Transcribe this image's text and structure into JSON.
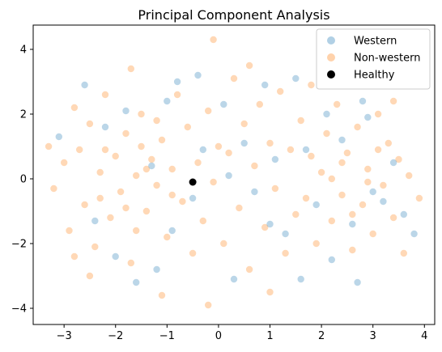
{
  "chart_data": {
    "type": "scatter",
    "title": "Principal Component Analysis",
    "xlabel": "",
    "ylabel": "",
    "xlim": [
      -3.6,
      4.2
    ],
    "ylim": [
      -4.5,
      4.75
    ],
    "xticks": [
      -3,
      -2,
      -1,
      0,
      1,
      2,
      3,
      4
    ],
    "yticks": [
      -4,
      -2,
      0,
      2,
      4
    ],
    "grid": false,
    "legend_position": "top-right",
    "series": [
      {
        "name": "Western",
        "color": "#1f77b4",
        "alpha": 0.3,
        "marker": "circle",
        "points": [
          [
            -3.1,
            1.3
          ],
          [
            -2.6,
            2.9
          ],
          [
            -2.2,
            1.6
          ],
          [
            -1.8,
            2.1
          ],
          [
            -1.6,
            -3.2
          ],
          [
            -1.2,
            -2.8
          ],
          [
            -1.0,
            2.4
          ],
          [
            -0.8,
            3.0
          ],
          [
            -0.4,
            3.2
          ],
          [
            -0.3,
            0.9
          ],
          [
            0.1,
            2.3
          ],
          [
            0.3,
            -3.1
          ],
          [
            0.5,
            1.1
          ],
          [
            0.7,
            -0.4
          ],
          [
            0.9,
            2.9
          ],
          [
            1.1,
            0.6
          ],
          [
            1.3,
            -1.7
          ],
          [
            1.5,
            3.1
          ],
          [
            1.6,
            -3.1
          ],
          [
            1.7,
            0.9
          ],
          [
            1.9,
            -0.8
          ],
          [
            2.1,
            2.0
          ],
          [
            2.2,
            -2.5
          ],
          [
            2.4,
            1.2
          ],
          [
            2.6,
            -1.4
          ],
          [
            2.7,
            -3.2
          ],
          [
            2.9,
            1.9
          ],
          [
            3.0,
            -0.4
          ],
          [
            3.2,
            -0.7
          ],
          [
            3.4,
            0.5
          ],
          [
            3.6,
            -1.1
          ],
          [
            3.8,
            -1.7
          ],
          [
            1.0,
            -1.4
          ],
          [
            0.2,
            0.1
          ],
          [
            -0.5,
            -0.6
          ],
          [
            -1.3,
            0.4
          ],
          [
            -2.4,
            -1.3
          ],
          [
            -2.0,
            -2.4
          ],
          [
            -0.9,
            -1.6
          ],
          [
            2.8,
            2.4
          ]
        ]
      },
      {
        "name": "Non-western",
        "color": "#ff7f0e",
        "alpha": 0.3,
        "marker": "circle",
        "points": [
          [
            -3.3,
            1.0
          ],
          [
            -3.2,
            -0.3
          ],
          [
            -3.0,
            0.5
          ],
          [
            -2.9,
            -1.6
          ],
          [
            -2.8,
            2.2
          ],
          [
            -2.7,
            0.9
          ],
          [
            -2.6,
            -0.8
          ],
          [
            -2.5,
            1.7
          ],
          [
            -2.4,
            -2.1
          ],
          [
            -2.3,
            0.2
          ],
          [
            -2.2,
            2.6
          ],
          [
            -2.1,
            -1.2
          ],
          [
            -2.0,
            0.7
          ],
          [
            -1.9,
            -0.4
          ],
          [
            -1.8,
            1.4
          ],
          [
            -1.7,
            -2.6
          ],
          [
            -1.6,
            0.1
          ],
          [
            -1.5,
            2.0
          ],
          [
            -1.4,
            -1.0
          ],
          [
            -1.3,
            0.6
          ],
          [
            -1.2,
            -0.2
          ],
          [
            -1.1,
            1.2
          ],
          [
            -1.0,
            -1.8
          ],
          [
            -0.9,
            0.3
          ],
          [
            -0.8,
            2.6
          ],
          [
            -0.7,
            -0.7
          ],
          [
            -0.6,
            1.6
          ],
          [
            -0.5,
            -2.3
          ],
          [
            -0.4,
            0.5
          ],
          [
            -0.3,
            -1.3
          ],
          [
            -0.2,
            2.1
          ],
          [
            -0.1,
            -0.1
          ],
          [
            0.0,
            1.0
          ],
          [
            0.1,
            -2.0
          ],
          [
            0.2,
            0.8
          ],
          [
            0.3,
            3.1
          ],
          [
            0.4,
            -0.9
          ],
          [
            0.5,
            1.7
          ],
          [
            0.6,
            -2.8
          ],
          [
            0.7,
            0.4
          ],
          [
            0.8,
            2.3
          ],
          [
            0.9,
            -1.5
          ],
          [
            1.0,
            1.1
          ],
          [
            1.1,
            -0.3
          ],
          [
            1.2,
            2.7
          ],
          [
            1.3,
            -2.3
          ],
          [
            1.4,
            0.9
          ],
          [
            1.5,
            -1.1
          ],
          [
            1.6,
            1.8
          ],
          [
            1.7,
            -0.6
          ],
          [
            1.8,
            2.9
          ],
          [
            1.9,
            -2.0
          ],
          [
            2.0,
            0.2
          ],
          [
            2.1,
            1.4
          ],
          [
            2.2,
            -1.3
          ],
          [
            2.3,
            2.3
          ],
          [
            2.4,
            -0.5
          ],
          [
            2.5,
            0.8
          ],
          [
            2.6,
            -2.2
          ],
          [
            2.7,
            1.6
          ],
          [
            2.8,
            -0.8
          ],
          [
            2.9,
            0.3
          ],
          [
            3.0,
            -1.7
          ],
          [
            3.1,
            2.0
          ],
          [
            3.2,
            -0.2
          ],
          [
            3.3,
            1.1
          ],
          [
            3.4,
            -1.2
          ],
          [
            3.5,
            0.6
          ],
          [
            3.6,
            -2.3
          ],
          [
            3.7,
            0.1
          ],
          [
            3.9,
            -0.6
          ],
          [
            -2.5,
            -3.0
          ],
          [
            -1.1,
            -3.6
          ],
          [
            -0.2,
            -3.9
          ],
          [
            1.0,
            -3.5
          ],
          [
            0.6,
            3.5
          ],
          [
            -0.1,
            4.3
          ],
          [
            -1.7,
            3.4
          ],
          [
            -2.8,
            -2.4
          ],
          [
            3.4,
            2.4
          ],
          [
            -1.5,
            1.0
          ],
          [
            -2.2,
            0.9
          ],
          [
            -1.8,
            -0.9
          ],
          [
            -1.2,
            1.8
          ],
          [
            -2.3,
            -0.6
          ],
          [
            -1.6,
            -1.6
          ],
          [
            -0.9,
            -0.5
          ],
          [
            -1.4,
            0.3
          ],
          [
            2.4,
            0.5
          ],
          [
            2.9,
            -0.1
          ],
          [
            2.2,
            0.0
          ],
          [
            3.1,
            0.9
          ],
          [
            1.8,
            0.7
          ],
          [
            2.6,
            -1.1
          ]
        ]
      },
      {
        "name": "Healthy",
        "color": "#000000",
        "alpha": 1.0,
        "marker": "circle",
        "points": [
          [
            -0.5,
            -0.1
          ]
        ]
      }
    ]
  }
}
